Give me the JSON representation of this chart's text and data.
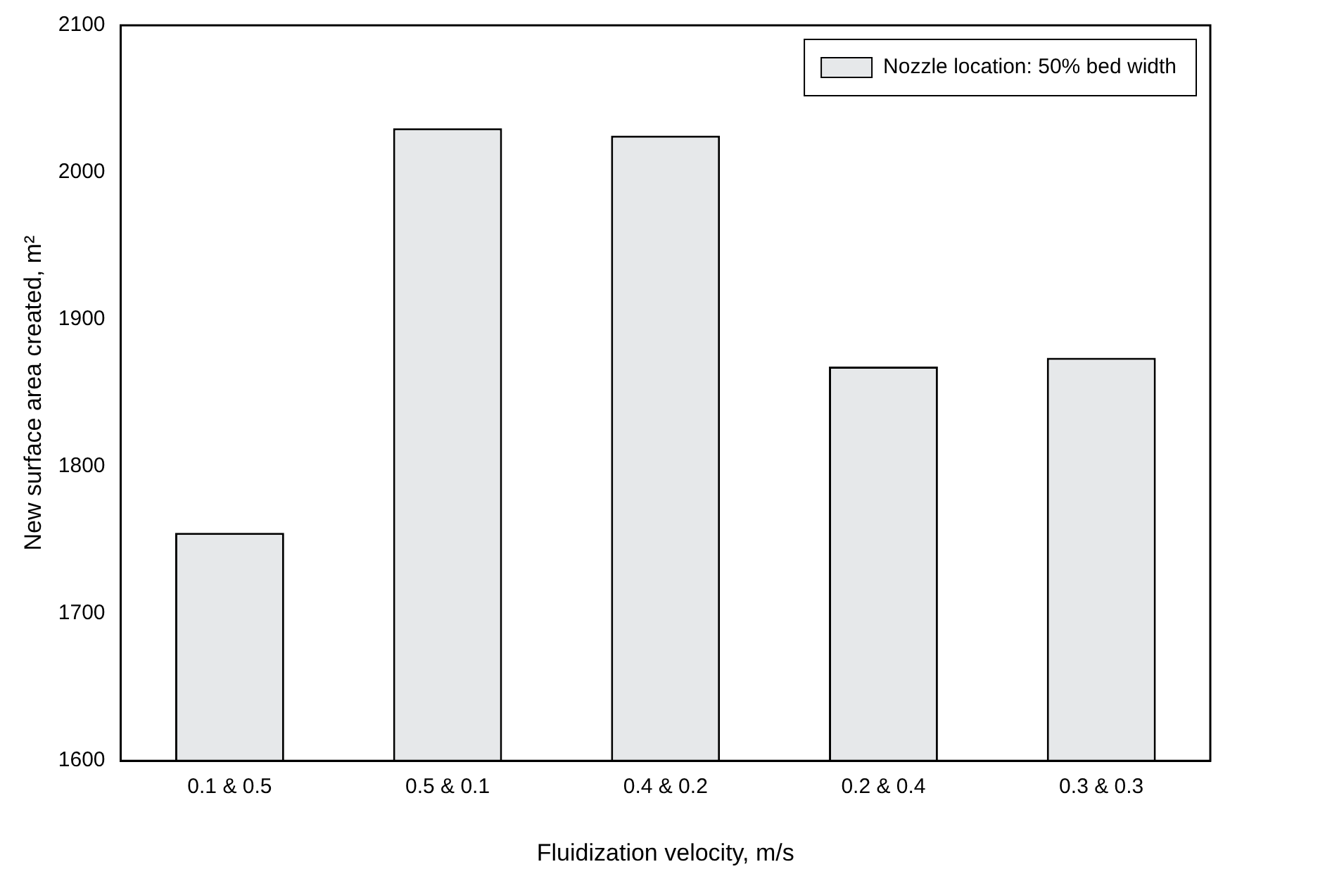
{
  "chart_data": {
    "type": "bar",
    "xlabel": "Fluidization velocity, m/s",
    "ylabel": "New surface area created, m²",
    "categories": [
      "0.1 & 0.5",
      "0.5 & 0.1",
      "0.4 & 0.2",
      "0.2 & 0.4",
      "0.3 & 0.3"
    ],
    "series": [
      {
        "name": "Nozzle location: 50% bed width",
        "color": "#e6e8ea",
        "values": [
          1755,
          2030,
          2025,
          1868,
          1874
        ]
      }
    ],
    "ylim": [
      1600,
      2100
    ],
    "yticks": [
      1600,
      1700,
      1800,
      1900,
      2000,
      2100
    ],
    "grid": false,
    "legend": "top right"
  }
}
